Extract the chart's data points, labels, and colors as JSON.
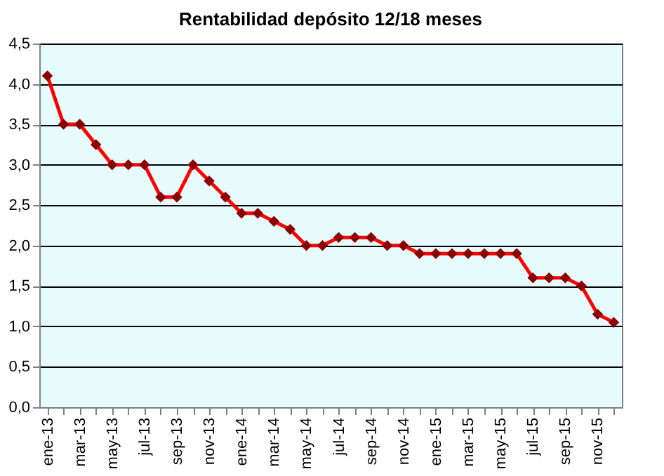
{
  "chart_data": {
    "type": "line",
    "title": "Rentabilidad depósito 12/18 meses",
    "categories": [
      "ene-13",
      null,
      "mar-13",
      null,
      "may-13",
      null,
      "jul-13",
      null,
      "sep-13",
      null,
      "nov-13",
      null,
      "ene-14",
      null,
      "mar-14",
      null,
      "may-14",
      null,
      "jul-14",
      null,
      "sep-14",
      null,
      "nov-14",
      null,
      "ene-15",
      null,
      "mar-15",
      null,
      "may-15",
      null,
      "jul-15",
      null,
      "sep-15",
      null,
      "nov-15",
      null
    ],
    "series": [
      {
        "color": "#ff0000",
        "values": [
          4.1,
          3.5,
          3.5,
          3.25,
          3.0,
          3.0,
          3.0,
          2.6,
          2.6,
          3.0,
          2.8,
          2.6,
          2.4,
          2.4,
          2.3,
          2.2,
          2.0,
          2.0,
          2.1,
          2.1,
          2.1,
          2.0,
          2.0,
          1.9,
          1.9,
          1.9,
          1.9,
          1.9,
          1.9,
          1.9,
          1.6,
          1.6,
          1.6,
          1.5,
          1.15,
          1.05
        ]
      }
    ],
    "ylim": [
      0,
      4.5
    ],
    "yticks": [
      {
        "value": 0,
        "label": "0,0"
      },
      {
        "value": 0.5,
        "label": "0,5"
      },
      {
        "value": 1,
        "label": "1,0"
      },
      {
        "value": 1.5,
        "label": "1,5"
      },
      {
        "value": 2,
        "label": "2,0"
      },
      {
        "value": 2.5,
        "label": "2,5"
      },
      {
        "value": 3,
        "label": "3,0"
      },
      {
        "value": 3.5,
        "label": "3,5"
      },
      {
        "value": 4,
        "label": "4,0"
      },
      {
        "value": 4.5,
        "label": "4,5"
      }
    ],
    "grid": "y",
    "marker": "diamond",
    "line_style": "solid"
  }
}
